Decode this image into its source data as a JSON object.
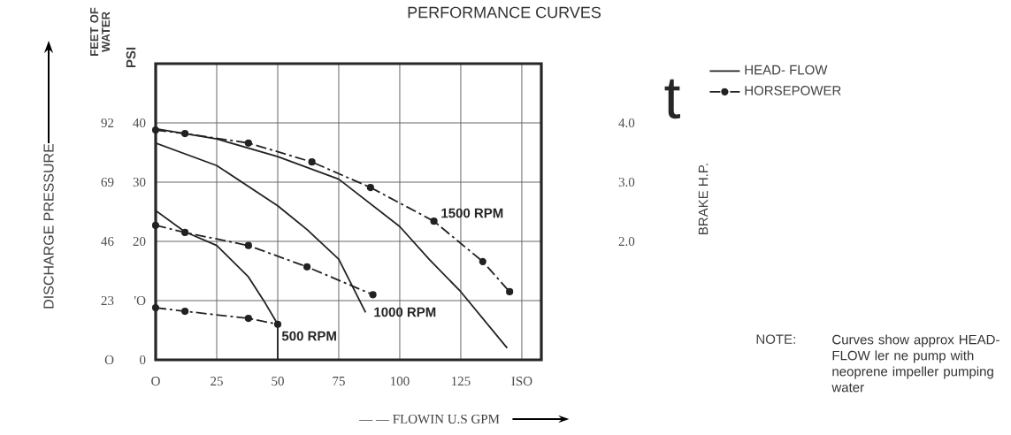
{
  "chart_data": {
    "type": "line",
    "title": "PERFORMANCE CURVES",
    "xlabel": "— — FLOWIN U.S GPM",
    "ylabel": "PSI",
    "y2label": "BRAKE H.P.",
    "y3label": "FEET OF WATER",
    "xlim": [
      0,
      158
    ],
    "xticks": [
      {
        "value": 0,
        "label": "O"
      },
      25,
      50,
      75,
      100,
      125,
      {
        "value": 150,
        "label": "ISO"
      }
    ],
    "ylim": [
      0,
      50
    ],
    "yticks": [
      0,
      {
        "value": 10,
        "label": "'O"
      },
      20,
      30,
      40
    ],
    "y2lim": [
      0,
      5
    ],
    "y2ticks": [
      {
        "value": 2,
        "label": "2.0"
      },
      {
        "value": 3,
        "label": "3.0"
      },
      {
        "value": 4,
        "label": "4.0"
      }
    ],
    "y3lim": [
      0,
      115
    ],
    "y3ticks": [
      {
        "value": 0,
        "label": "O"
      },
      23,
      46,
      69,
      92
    ],
    "grid": true,
    "legend": "top right",
    "series": [
      {
        "name": "HEAD- FLOW",
        "color": "#222222",
        "marker": "none",
        "line_style": "solid",
        "x": [
          0,
          25,
          50,
          75,
          100,
          112,
          125,
          144
        ],
        "values": [
          39,
          37.3,
          34.3,
          30.5,
          22.5,
          17,
          11.5,
          2
        ]
      },
      {
        "color": "#222222",
        "marker": "none",
        "line_style": "solid",
        "x": [
          0,
          25,
          50,
          62,
          75,
          86
        ],
        "values": [
          36.6,
          32.8,
          26,
          22,
          17,
          8
        ]
      },
      {
        "color": "#222222",
        "marker": "none",
        "line_style": "solid",
        "x": [
          0,
          12,
          25,
          38,
          45,
          50,
          50
        ],
        "values": [
          25.2,
          21.6,
          19.3,
          14,
          9.5,
          6,
          0
        ]
      },
      {
        "name": "HORSEPOWER",
        "axis": "y2",
        "color": "#222222",
        "marker": "circle",
        "line_style": "dashed",
        "x": [
          0,
          12,
          38,
          64,
          88,
          114,
          134,
          145
        ],
        "values": [
          3.88,
          3.82,
          3.66,
          3.34,
          2.91,
          2.34,
          1.66,
          1.15
        ]
      },
      {
        "axis": "y2",
        "color": "#222222",
        "marker": "circle",
        "line_style": "dashed",
        "x": [
          0,
          12,
          38,
          62,
          89
        ],
        "values": [
          2.27,
          2.15,
          1.93,
          1.57,
          1.1
        ]
      },
      {
        "axis": "y2",
        "color": "#222222",
        "marker": "circle",
        "line_style": "dashed",
        "x": [
          0,
          12,
          38,
          50
        ],
        "values": [
          0.88,
          0.82,
          0.7,
          0.6
        ]
      }
    ],
    "annotations": [
      "DISCHARGE PRESSURE",
      "t",
      "NOTE:",
      "Curves show approx HEAD- FLOW ler ne pump with neoprene impeller pumping water",
      "1500 RPM",
      "1000 RPM",
      "500 RPM"
    ]
  }
}
